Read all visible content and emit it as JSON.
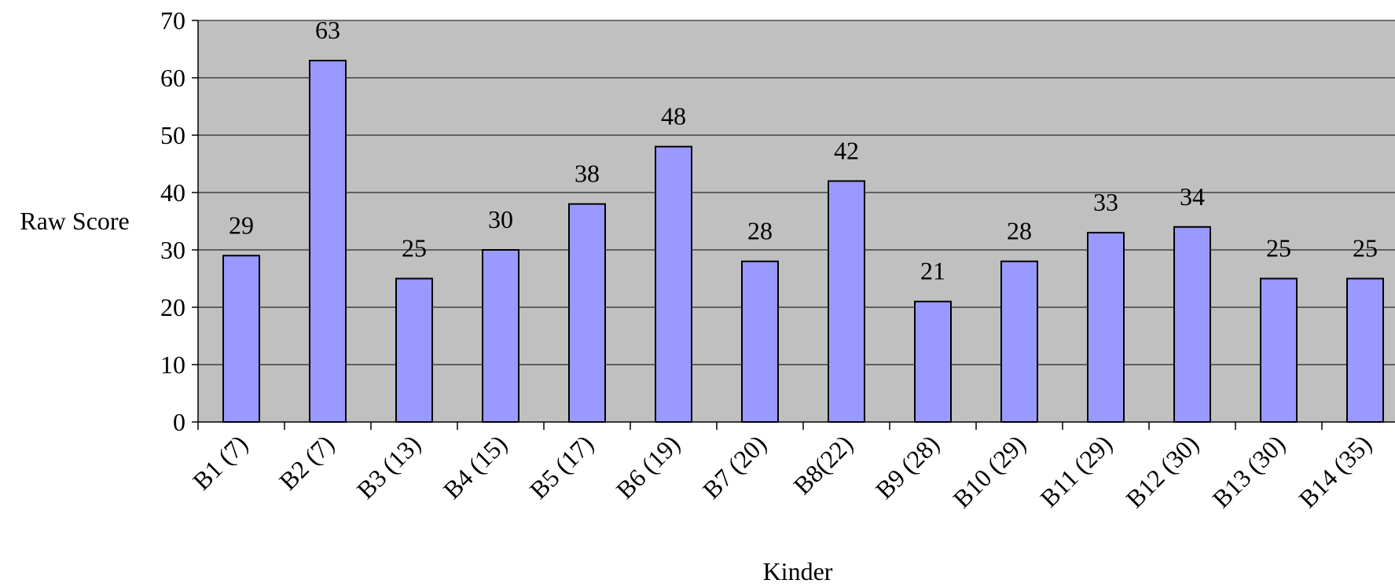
{
  "chart_data": {
    "type": "bar",
    "categories": [
      "B1 (7)",
      "B2 (7)",
      "B3 (13)",
      "B4 (15)",
      "B5 (17)",
      "B6 (19)",
      "B7 (20)",
      "B8(22)",
      "B9 (28)",
      "B10 (29)",
      "B11 (29)",
      "B12 (30)",
      "B13 (30)",
      "B14 (35)"
    ],
    "values": [
      29,
      63,
      25,
      30,
      38,
      48,
      28,
      42,
      21,
      28,
      33,
      34,
      25,
      25
    ],
    "data_labels": [
      "29",
      "63",
      "25",
      "30",
      "38",
      "48",
      "28",
      "42",
      "21",
      "28",
      "33",
      "34",
      "25",
      "25"
    ],
    "title": "",
    "xlabel": "Kinder",
    "ylabel": "Raw Score",
    "ylim": [
      0,
      70
    ],
    "yticks": [
      "0",
      "10",
      "20",
      "30",
      "40",
      "50",
      "60",
      "70"
    ],
    "grid": true,
    "legend": "none",
    "colors": {
      "bar_fill": "#9999ff",
      "bar_stroke": "#000000",
      "plot_background": "#c0c0c0",
      "gridline": "#000000",
      "page_background": "#ffffff"
    }
  }
}
